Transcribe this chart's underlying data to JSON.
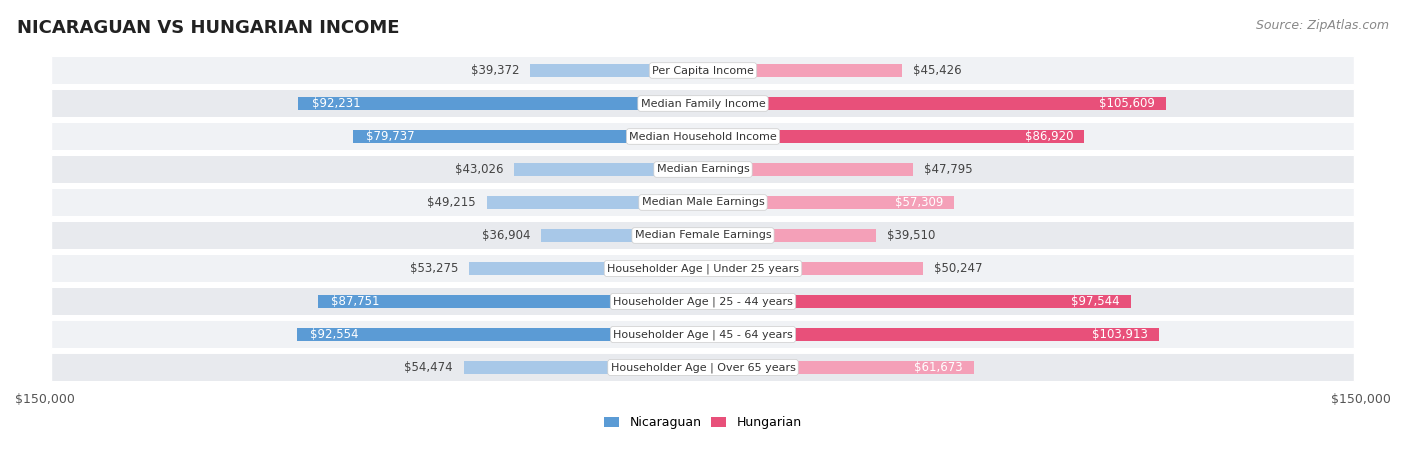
{
  "title": "NICARAGUAN VS HUNGARIAN INCOME",
  "source": "Source: ZipAtlas.com",
  "categories": [
    "Per Capita Income",
    "Median Family Income",
    "Median Household Income",
    "Median Earnings",
    "Median Male Earnings",
    "Median Female Earnings",
    "Householder Age | Under 25 years",
    "Householder Age | 25 - 44 years",
    "Householder Age | 45 - 64 years",
    "Householder Age | Over 65 years"
  ],
  "nicaraguan": [
    39372,
    92231,
    79737,
    43026,
    49215,
    36904,
    53275,
    87751,
    92554,
    54474
  ],
  "hungarian": [
    45426,
    105609,
    86920,
    47795,
    57309,
    39510,
    50247,
    97544,
    103913,
    61673
  ],
  "max_val": 150000,
  "blue_light": "#a8c8e8",
  "blue_dark": "#5b9bd5",
  "pink_light": "#f4a0b8",
  "pink_dark": "#e8507a",
  "row_bg_even": "#f0f2f5",
  "row_bg_odd": "#e8eaee",
  "title_fontsize": 13,
  "source_fontsize": 9,
  "bar_label_fontsize": 8.5,
  "category_fontsize": 8.0,
  "axis_label_fontsize": 9,
  "legend_fontsize": 9,
  "inside_label_threshold": 55000
}
